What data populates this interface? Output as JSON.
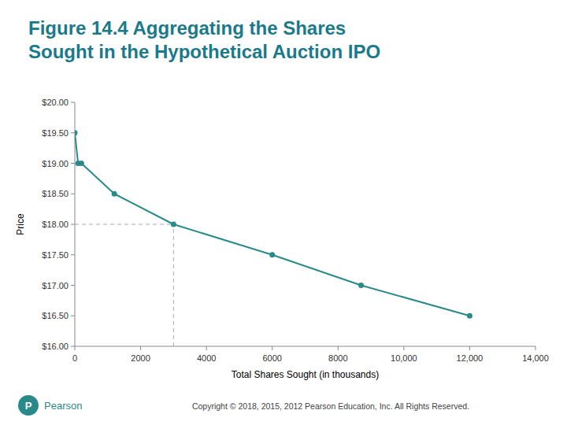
{
  "chart_data": {
    "type": "line",
    "title": "Figure 14.4 Aggregating the Shares\nSought in the Hypothetical Auction IPO",
    "x_label": "Total Shares Sought (in thousands)",
    "y_label": "Price",
    "x": [
      0,
      100,
      200,
      1200,
      3000,
      6000,
      8700,
      12000
    ],
    "series": [
      {
        "color": "#2a8a8a",
        "marker": "circle",
        "line_style": "solid",
        "values": [
          19.5,
          19.0,
          19.0,
          18.5,
          18.0,
          17.5,
          17.0,
          16.5
        ]
      }
    ],
    "dashed_point": {
      "x": 3000,
      "y": 18.0
    },
    "xlim": [
      0,
      14000
    ],
    "ylim": [
      16.0,
      20.0
    ],
    "xticks": [
      0,
      2000,
      4000,
      6000,
      8000,
      {
        "value": 10000,
        "label": "10,000"
      },
      {
        "value": 12000,
        "label": "12,000"
      },
      {
        "value": 14000,
        "label": "14,000"
      }
    ],
    "yticks": [
      {
        "value": 16.0,
        "label": "$16.00"
      },
      {
        "value": 16.5,
        "label": "$16.50"
      },
      {
        "value": 17.0,
        "label": "$17.00"
      },
      {
        "value": 17.5,
        "label": "$17.50"
      },
      {
        "value": 18.0,
        "label": "$18.00"
      },
      {
        "value": 18.5,
        "label": "$18.50"
      },
      {
        "value": 19.0,
        "label": "$19.00"
      },
      {
        "value": 19.5,
        "label": "$19.50"
      },
      {
        "value": 20.0,
        "label": "$20.00"
      }
    ],
    "grid": false,
    "annotations": [
      "P",
      "Pearson",
      "Copyright © 2018, 2015, 2012 Pearson Education, Inc. All Rights Reserved."
    ]
  }
}
